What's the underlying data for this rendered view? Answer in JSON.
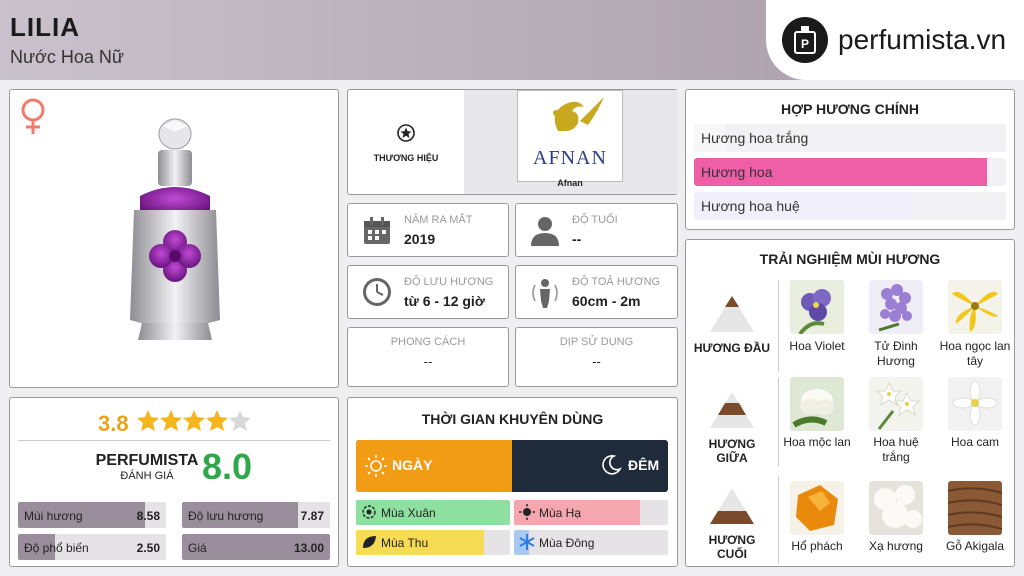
{
  "header": {
    "name": "LILIA",
    "subtitle": "Nước Hoa Nữ"
  },
  "logo": {
    "text": "perfumista.vn",
    "icon": "perfume-bottle-icon"
  },
  "gender_icon": "female-symbol-icon",
  "brand": {
    "label": "THƯƠNG HIỆU",
    "name": "Afnan",
    "logo_text": "AFNAN"
  },
  "info": {
    "release": {
      "label": "NĂM RA MẮT",
      "value": "2019"
    },
    "age": {
      "label": "ĐỘ TUỔI",
      "value": "--"
    },
    "longevity": {
      "label": "ĐỘ LƯU HƯƠNG",
      "value": "từ 6 - 12 giờ"
    },
    "sillage": {
      "label": "ĐỘ TOẢ HƯƠNG",
      "value": "60cm - 2m"
    },
    "style": {
      "label": "PHONG CÁCH",
      "value": "--"
    },
    "occasion": {
      "label": "DỊP SỬ DỤNG",
      "value": "--"
    }
  },
  "rating": {
    "value": "3.8",
    "stars": 3.8,
    "brand": "PERFUMISTA",
    "brand_sub": "ĐÁNH GIÁ",
    "score": "8.0"
  },
  "scores": [
    {
      "label": "Mùi hương",
      "value": "8.58",
      "fraction": 0.858
    },
    {
      "label": "Độ lưu hương",
      "value": "7.87",
      "fraction": 0.787
    },
    {
      "label": "Độ phổ biến",
      "value": "2.50",
      "fraction": 0.25
    },
    {
      "label": "Giá",
      "value": "13.00",
      "fraction": 1.0
    }
  ],
  "time": {
    "title": "THỜI GIAN KHUYÊN DÙNG",
    "day": "NGÀY",
    "night": "ĐÊM",
    "day_fraction": 0.5,
    "seasons": [
      {
        "label": "Mùa Xuân",
        "fraction": 1.0
      },
      {
        "label": "Mùa Hạ",
        "fraction": 0.82
      },
      {
        "label": "Mùa Thu",
        "fraction": 0.83
      },
      {
        "label": "Mùa Đông",
        "fraction": 0.1
      }
    ]
  },
  "accords": {
    "title": "HỢP HƯƠNG CHÍNH",
    "items": [
      {
        "label": "Hương hoa trắng",
        "fraction": 0.1,
        "color": "#f7f7f7"
      },
      {
        "label": "Hương hoa",
        "fraction": 0.94,
        "color": "#ef5fa7"
      },
      {
        "label": "Hương hoa huệ",
        "fraction": 0.7,
        "color": "#f0eefb"
      }
    ]
  },
  "notes": {
    "title": "TRẢI NGHIỆM MÙI HƯƠNG",
    "tiers": [
      {
        "label": "HƯƠNG ĐẦU",
        "items": [
          "Hoa Violet",
          "Tử Đinh Hương",
          "Hoa ngọc lan tây"
        ]
      },
      {
        "label": "HƯƠNG GIỮA",
        "items": [
          "Hoa mộc lan",
          "Hoa huệ trắng",
          "Hoa cam"
        ]
      },
      {
        "label": "HƯƠNG CUỐI",
        "items": [
          "Hổ phách",
          "Xạ hương",
          "Gỗ Akigala"
        ]
      }
    ]
  }
}
